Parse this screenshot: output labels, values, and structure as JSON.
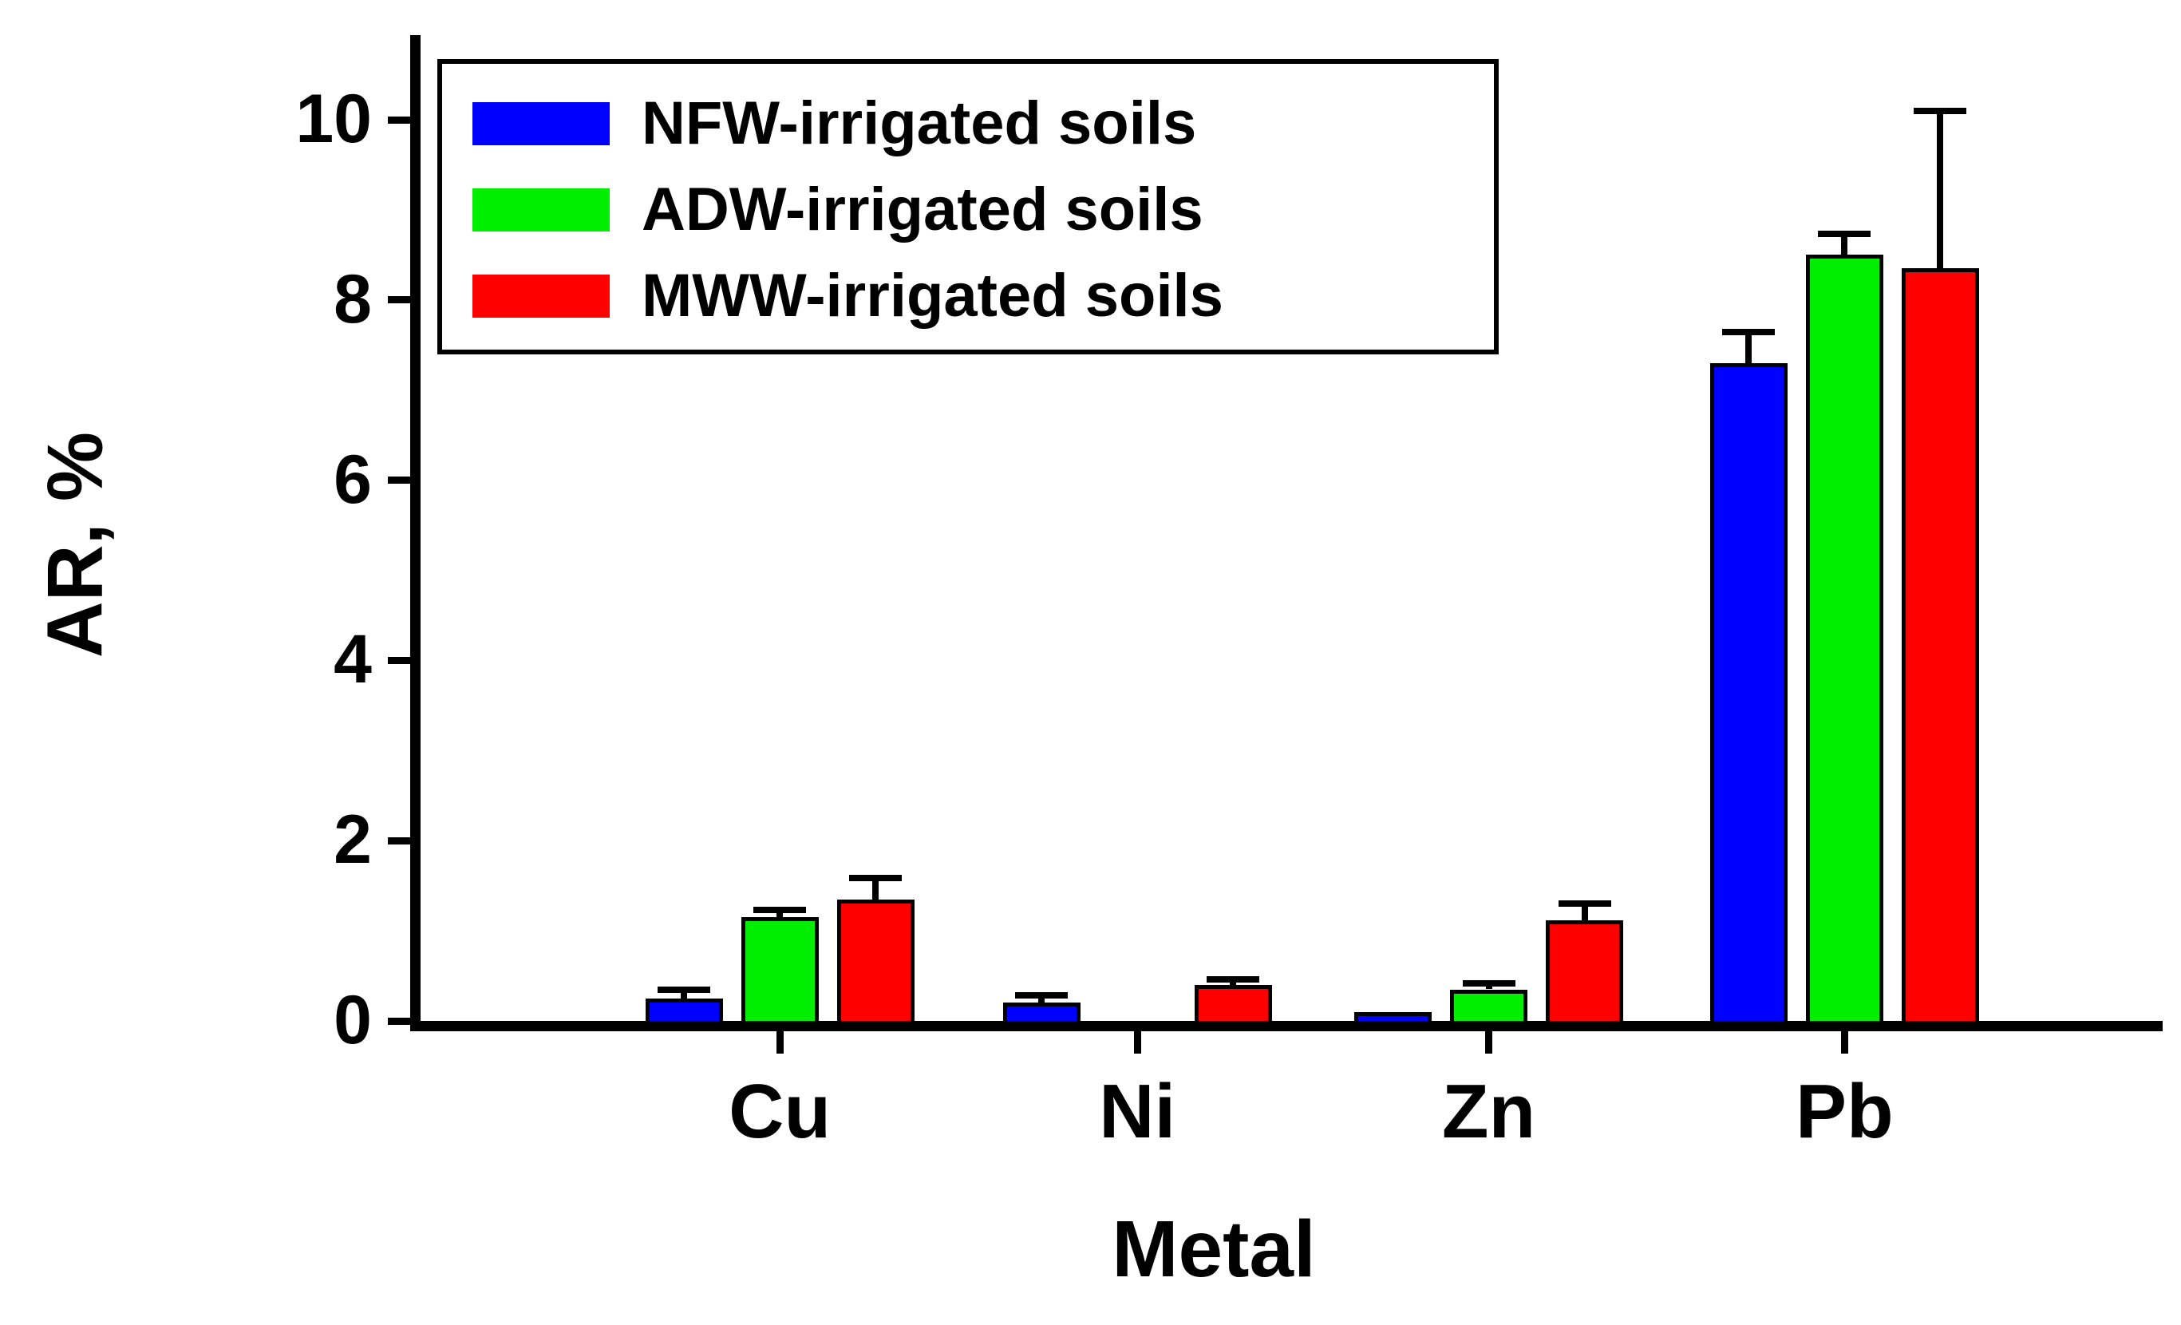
{
  "chart_data": {
    "type": "bar",
    "title": "",
    "xlabel": "Metal",
    "ylabel": "AR, %",
    "ylim": [
      0,
      10
    ],
    "yticks": [
      0,
      2,
      4,
      6,
      8,
      10
    ],
    "grid": false,
    "legend_position": "top-left-inside",
    "categories": [
      "Cu",
      "Ni",
      "Zn",
      "Pb"
    ],
    "series": [
      {
        "name": "NFW-irrigated soils",
        "color": "#0000ff",
        "values": [
          0.25,
          0.2,
          0.1,
          7.3
        ],
        "errors": [
          0.13,
          0.12,
          0,
          0.38
        ]
      },
      {
        "name": "ADW-irrigated soils",
        "color": "#00ee00",
        "values": [
          1.15,
          0.02,
          0.35,
          8.5
        ],
        "errors": [
          0.12,
          0,
          0.1,
          0.27
        ]
      },
      {
        "name": "MWW-irrigated soils",
        "color": "#ff0000",
        "values": [
          1.35,
          0.4,
          1.12,
          8.35
        ],
        "errors": [
          0.27,
          0.1,
          0.22,
          1.78
        ]
      }
    ]
  }
}
